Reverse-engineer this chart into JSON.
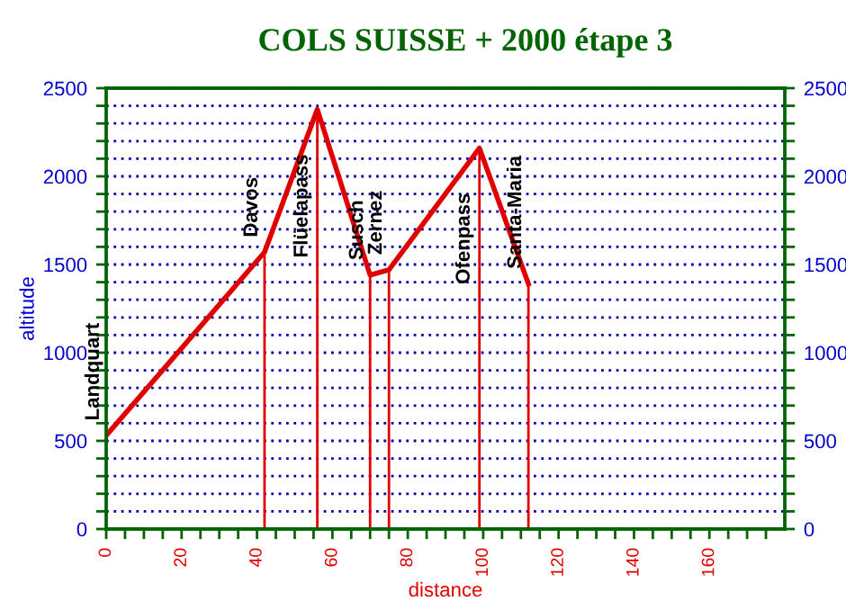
{
  "chart_data": {
    "type": "line",
    "title": "COLS SUISSE + 2000 étape 3",
    "xlabel": "distance",
    "ylabel": "altitude",
    "series": [
      {
        "color": "#e00000",
        "x": [
          0,
          42,
          56,
          70,
          75,
          99,
          112
        ],
        "values": [
          530,
          1570,
          2380,
          1440,
          1470,
          2160,
          1390
        ],
        "errors": [
          null,
          [
            0,
            1570
          ],
          [
            0,
            2380
          ],
          [
            0,
            1440
          ],
          [
            0,
            1470
          ],
          [
            0,
            2160
          ],
          [
            0,
            1390
          ]
        ]
      }
    ],
    "annotations": [
      {
        "text": "Landquart",
        "x": 0,
        "y": 530
      },
      {
        "text": "Davos",
        "x": 42,
        "y": 1570
      },
      {
        "text": "Flüelapass",
        "x": 56,
        "y": 2380
      },
      {
        "text": "Susch",
        "x": 70,
        "y": 1440
      },
      {
        "text": "Zernez",
        "x": 75,
        "y": 1470
      },
      {
        "text": "Ofenpass",
        "x": 99,
        "y": 2160
      },
      {
        "text": "Santa-Maria",
        "x": 112,
        "y": 1390
      }
    ],
    "xlim": [
      0,
      180
    ],
    "xticks": [
      0,
      {
        "value": 5,
        "label": null
      },
      {
        "value": 10,
        "label": null
      },
      {
        "value": 15,
        "label": null
      },
      20,
      {
        "value": 25,
        "label": null
      },
      {
        "value": 30,
        "label": null
      },
      {
        "value": 35,
        "label": null
      },
      40,
      {
        "value": 45,
        "label": null
      },
      {
        "value": 50,
        "label": null
      },
      {
        "value": 55,
        "label": null
      },
      60,
      {
        "value": 65,
        "label": null
      },
      {
        "value": 70,
        "label": null
      },
      {
        "value": 75,
        "label": null
      },
      80,
      {
        "value": 85,
        "label": null
      },
      {
        "value": 90,
        "label": null
      },
      {
        "value": 95,
        "label": null
      },
      100,
      {
        "value": 105,
        "label": null
      },
      {
        "value": 110,
        "label": null
      },
      {
        "value": 115,
        "label": null
      },
      120,
      {
        "value": 125,
        "label": null
      },
      {
        "value": 130,
        "label": null
      },
      {
        "value": 135,
        "label": null
      },
      140,
      {
        "value": 145,
        "label": null
      },
      {
        "value": 150,
        "label": null
      },
      {
        "value": 155,
        "label": null
      },
      160,
      {
        "value": 165,
        "label": null
      },
      {
        "value": 170,
        "label": null
      },
      {
        "value": 175,
        "label": null
      }
    ],
    "ylim": [
      0,
      2500
    ],
    "yticks": [
      0,
      {
        "value": 100,
        "label": null
      },
      {
        "value": 200,
        "label": null
      },
      {
        "value": 300,
        "label": null
      },
      {
        "value": 400,
        "label": null
      },
      500,
      {
        "value": 600,
        "label": null
      },
      {
        "value": 700,
        "label": null
      },
      {
        "value": 800,
        "label": null
      },
      {
        "value": 900,
        "label": null
      },
      1000,
      {
        "value": 1100,
        "label": null
      },
      {
        "value": 1200,
        "label": null
      },
      {
        "value": 1300,
        "label": null
      },
      {
        "value": 1400,
        "label": null
      },
      1500,
      {
        "value": 1600,
        "label": null
      },
      {
        "value": 1700,
        "label": null
      },
      {
        "value": 1800,
        "label": null
      },
      {
        "value": 1900,
        "label": null
      },
      2000,
      {
        "value": 2100,
        "label": null
      },
      {
        "value": 2200,
        "label": null
      },
      {
        "value": 2300,
        "label": null
      },
      {
        "value": 2400,
        "label": null
      },
      2500
    ],
    "y2lim": [
      0,
      2500
    ],
    "y2ticks": [
      0,
      {
        "value": 100,
        "label": null
      },
      {
        "value": 200,
        "label": null
      },
      {
        "value": 300,
        "label": null
      },
      {
        "value": 400,
        "label": null
      },
      500,
      {
        "value": 600,
        "label": null
      },
      {
        "value": 700,
        "label": null
      },
      {
        "value": 800,
        "label": null
      },
      {
        "value": 900,
        "label": null
      },
      1000,
      {
        "value": 1100,
        "label": null
      },
      {
        "value": 1200,
        "label": null
      },
      {
        "value": 1300,
        "label": null
      },
      {
        "value": 1400,
        "label": null
      },
      1500,
      {
        "value": 1600,
        "label": null
      },
      {
        "value": 1700,
        "label": null
      },
      {
        "value": 1800,
        "label": null
      },
      {
        "value": 1900,
        "label": null
      },
      2000,
      {
        "value": 2100,
        "label": null
      },
      {
        "value": 2200,
        "label": null
      },
      {
        "value": 2300,
        "label": null
      },
      {
        "value": 2400,
        "label": null
      },
      2500
    ],
    "grid": "y",
    "marker": "none",
    "line_style": "solid"
  }
}
